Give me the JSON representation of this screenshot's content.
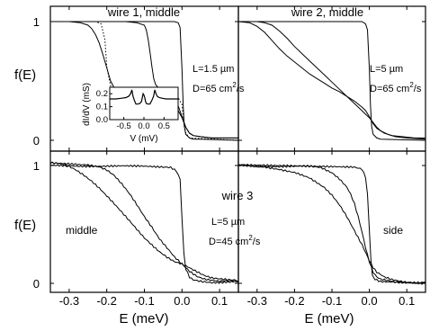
{
  "chart_data": {
    "type": "line",
    "x_axis_label": "E (meV)",
    "y_axis_label": "f(E)",
    "x_ticks": [
      "-0.3",
      "-0.2",
      "-0.1",
      "0.0",
      "0.1"
    ],
    "x_range": [
      -0.35,
      0.15
    ],
    "y_range": [
      -0.03,
      1.05
    ],
    "y_ticks_top": [
      "1",
      "0"
    ],
    "y_ticks_bottom": [
      "1",
      "0"
    ],
    "panels": [
      {
        "id": "wire1",
        "title": "wire 1, middle",
        "annotations": {
          "length": "L=1.5 µm",
          "diffusion": "D=65 cm",
          "diffusion_sup": "2",
          "diffusion_unit": "/s"
        },
        "series": [
          {
            "style": "solid",
            "x": [
              -0.35,
              -0.3,
              -0.27,
              -0.25,
              -0.24,
              -0.23,
              -0.22,
              -0.21,
              -0.2,
              -0.19,
              -0.18,
              -0.17,
              -0.15,
              -0.12,
              -0.09,
              -0.07,
              -0.05,
              -0.04,
              -0.03,
              -0.02,
              -0.01,
              0.0,
              0.01,
              0.02,
              0.03,
              0.05,
              0.08,
              0.11,
              0.15
            ],
            "y": [
              1.0,
              1.0,
              0.99,
              0.97,
              0.94,
              0.89,
              0.82,
              0.72,
              0.61,
              0.5,
              0.44,
              0.41,
              0.39,
              0.38,
              0.37,
              0.36,
              0.35,
              0.34,
              0.32,
              0.29,
              0.25,
              0.19,
              0.11,
              0.06,
              0.04,
              0.03,
              0.02,
              0.02,
              0.02
            ]
          },
          {
            "style": "solid",
            "x": [
              -0.35,
              -0.15,
              -0.12,
              -0.1,
              -0.095,
              -0.09,
              -0.085,
              -0.08,
              -0.075,
              -0.07,
              -0.06,
              -0.05,
              -0.04,
              -0.03,
              -0.02,
              -0.01,
              0.0,
              0.01,
              0.02,
              0.03,
              0.05,
              0.08,
              0.15
            ],
            "y": [
              1.0,
              1.0,
              0.99,
              0.97,
              0.93,
              0.85,
              0.74,
              0.62,
              0.52,
              0.47,
              0.43,
              0.41,
              0.39,
              0.37,
              0.34,
              0.29,
              0.2,
              0.11,
              0.06,
              0.04,
              0.03,
              0.02,
              0.02
            ]
          },
          {
            "style": "solid",
            "x": [
              -0.35,
              -0.02,
              -0.01,
              -0.005,
              0.0,
              0.003,
              0.006,
              0.01,
              0.02,
              0.03,
              0.05,
              0.15
            ],
            "y": [
              1.0,
              1.0,
              0.99,
              0.95,
              0.6,
              0.3,
              0.12,
              0.05,
              0.02,
              0.01,
              0.01,
              0.0
            ]
          },
          {
            "style": "dotted",
            "x": [
              -0.35,
              -0.23,
              -0.215,
              -0.205,
              -0.2,
              -0.19,
              -0.18,
              -0.1,
              -0.03,
              -0.02,
              -0.01,
              0.0,
              0.005,
              0.01,
              0.02,
              0.15
            ],
            "y": [
              1.0,
              1.0,
              0.98,
              0.85,
              0.62,
              0.46,
              0.42,
              0.4,
              0.39,
              0.38,
              0.36,
              0.3,
              0.15,
              0.06,
              0.02,
              0.0
            ]
          }
        ]
      },
      {
        "id": "wire2",
        "title": "wire 2, middle",
        "annotations": {
          "length": "L=5 µm",
          "diffusion": "D=65 cm",
          "diffusion_sup": "2",
          "diffusion_unit": "/s"
        },
        "series": [
          {
            "style": "solid",
            "x": [
              -0.35,
              -0.32,
              -0.3,
              -0.28,
              -0.26,
              -0.24,
              -0.22,
              -0.2,
              -0.18,
              -0.16,
              -0.14,
              -0.12,
              -0.1,
              -0.08,
              -0.06,
              -0.04,
              -0.02,
              -0.01,
              0.0,
              0.01,
              0.02,
              0.04,
              0.06,
              0.09,
              0.12,
              0.15
            ],
            "y": [
              1.0,
              0.99,
              0.96,
              0.91,
              0.84,
              0.77,
              0.71,
              0.66,
              0.61,
              0.56,
              0.52,
              0.48,
              0.44,
              0.41,
              0.37,
              0.33,
              0.28,
              0.25,
              0.2,
              0.14,
              0.1,
              0.06,
              0.04,
              0.03,
              0.02,
              0.02
            ]
          },
          {
            "style": "solid",
            "x": [
              -0.35,
              -0.3,
              -0.28,
              -0.26,
              -0.24,
              -0.22,
              -0.2,
              -0.18,
              -0.16,
              -0.14,
              -0.12,
              -0.1,
              -0.08,
              -0.06,
              -0.04,
              -0.02,
              -0.01,
              0.0,
              0.01,
              0.02,
              0.03,
              0.05,
              0.07,
              0.1,
              0.15
            ],
            "y": [
              1.0,
              1.0,
              0.99,
              0.97,
              0.92,
              0.86,
              0.79,
              0.73,
              0.67,
              0.61,
              0.55,
              0.49,
              0.43,
              0.37,
              0.31,
              0.25,
              0.22,
              0.19,
              0.15,
              0.11,
              0.08,
              0.05,
              0.03,
              0.02,
              0.01
            ]
          },
          {
            "style": "solid",
            "x": [
              -0.35,
              -0.02,
              -0.01,
              -0.005,
              0.0,
              0.003,
              0.006,
              0.01,
              0.02,
              0.03,
              0.15
            ],
            "y": [
              1.0,
              1.0,
              0.98,
              0.93,
              0.6,
              0.3,
              0.12,
              0.05,
              0.02,
              0.01,
              0.0
            ]
          }
        ]
      },
      {
        "id": "wire3-middle",
        "title": "wire 3",
        "label": "middle",
        "annotations": {
          "length": "L=5 µm",
          "diffusion": "D=45 cm",
          "diffusion_sup": "2",
          "diffusion_unit": "/s"
        },
        "series": [
          {
            "style": "solid",
            "noise": true,
            "x": [
              -0.35,
              -0.32,
              -0.3,
              -0.28,
              -0.26,
              -0.24,
              -0.22,
              -0.2,
              -0.18,
              -0.16,
              -0.14,
              -0.12,
              -0.1,
              -0.08,
              -0.06,
              -0.04,
              -0.02,
              0.0,
              0.02,
              0.04,
              0.06,
              0.08,
              0.1,
              0.12,
              0.15
            ],
            "y": [
              1.02,
              1.01,
              0.99,
              0.96,
              0.92,
              0.87,
              0.81,
              0.74,
              0.67,
              0.6,
              0.53,
              0.46,
              0.39,
              0.33,
              0.27,
              0.22,
              0.18,
              0.16,
              0.13,
              0.1,
              0.07,
              0.05,
              0.04,
              0.03,
              0.02
            ]
          },
          {
            "style": "solid",
            "noise": true,
            "x": [
              -0.35,
              -0.25,
              -0.22,
              -0.2,
              -0.18,
              -0.16,
              -0.14,
              -0.12,
              -0.1,
              -0.08,
              -0.06,
              -0.04,
              -0.02,
              0.0,
              0.02,
              0.04,
              0.06,
              0.08,
              0.1,
              0.12,
              0.15
            ],
            "y": [
              1.02,
              1.01,
              0.99,
              0.96,
              0.91,
              0.84,
              0.76,
              0.67,
              0.57,
              0.48,
              0.38,
              0.3,
              0.22,
              0.16,
              0.1,
              0.06,
              0.04,
              0.03,
              0.02,
              0.02,
              0.02
            ]
          },
          {
            "style": "solid",
            "noise": true,
            "x": [
              -0.35,
              -0.06,
              -0.03,
              -0.015,
              -0.005,
              0.0,
              0.005,
              0.01,
              0.02,
              0.03,
              0.05,
              0.08,
              0.15
            ],
            "y": [
              1.0,
              0.99,
              0.98,
              0.95,
              0.88,
              0.55,
              0.25,
              0.12,
              0.05,
              0.03,
              0.02,
              0.01,
              0.01
            ]
          }
        ]
      },
      {
        "id": "wire3-side",
        "label": "side",
        "series": [
          {
            "style": "solid",
            "noise": true,
            "x": [
              -0.35,
              -0.28,
              -0.24,
              -0.2,
              -0.16,
              -0.12,
              -0.1,
              -0.08,
              -0.06,
              -0.04,
              -0.02,
              -0.01,
              0.0,
              0.01,
              0.02,
              0.04,
              0.06,
              0.08,
              0.1,
              0.15
            ],
            "y": [
              1.0,
              0.99,
              0.97,
              0.94,
              0.89,
              0.81,
              0.75,
              0.67,
              0.57,
              0.45,
              0.33,
              0.26,
              0.19,
              0.13,
              0.09,
              0.05,
              0.03,
              0.02,
              0.01,
              0.01
            ]
          },
          {
            "style": "solid",
            "noise": true,
            "x": [
              -0.35,
              -0.16,
              -0.13,
              -0.1,
              -0.08,
              -0.06,
              -0.05,
              -0.04,
              -0.03,
              -0.02,
              -0.01,
              0.0,
              0.01,
              0.02,
              0.03,
              0.05,
              0.07,
              0.1,
              0.15
            ],
            "y": [
              1.0,
              0.99,
              0.98,
              0.94,
              0.89,
              0.82,
              0.76,
              0.68,
              0.57,
              0.44,
              0.3,
              0.18,
              0.09,
              0.05,
              0.03,
              0.02,
              0.01,
              0.01,
              0.01
            ]
          },
          {
            "style": "solid",
            "noise": true,
            "x": [
              -0.35,
              -0.04,
              -0.02,
              -0.01,
              -0.005,
              0.0,
              0.004,
              0.008,
              0.015,
              0.03,
              0.15
            ],
            "y": [
              1.0,
              0.99,
              0.97,
              0.9,
              0.75,
              0.45,
              0.2,
              0.08,
              0.03,
              0.01,
              0.0
            ]
          }
        ]
      }
    ],
    "inset": {
      "x_label": "V (mV)",
      "y_label": "dI/dV (mS)",
      "x_ticks": [
        "-0.5",
        "0.0",
        "0.5"
      ],
      "y_ticks": [
        "0.0",
        "0.1",
        "0.2"
      ],
      "x_range": [
        -0.85,
        0.85
      ],
      "y_range": [
        0.0,
        0.25
      ],
      "series": [
        {
          "x": [
            -0.85,
            -0.7,
            -0.55,
            -0.45,
            -0.38,
            -0.33,
            -0.3,
            -0.27,
            -0.24,
            -0.2,
            -0.15,
            -0.1,
            -0.06,
            -0.04,
            -0.02,
            0.0,
            0.02,
            0.04,
            0.06,
            0.1,
            0.15,
            0.2,
            0.24,
            0.27,
            0.3,
            0.33,
            0.38,
            0.45,
            0.55,
            0.7,
            0.85
          ],
          "y": [
            0.16,
            0.16,
            0.165,
            0.17,
            0.18,
            0.2,
            0.23,
            0.18,
            0.15,
            0.12,
            0.12,
            0.125,
            0.14,
            0.17,
            0.2,
            0.19,
            0.17,
            0.14,
            0.125,
            0.12,
            0.12,
            0.15,
            0.18,
            0.23,
            0.2,
            0.18,
            0.17,
            0.165,
            0.16,
            0.16,
            0.16
          ]
        }
      ]
    }
  }
}
